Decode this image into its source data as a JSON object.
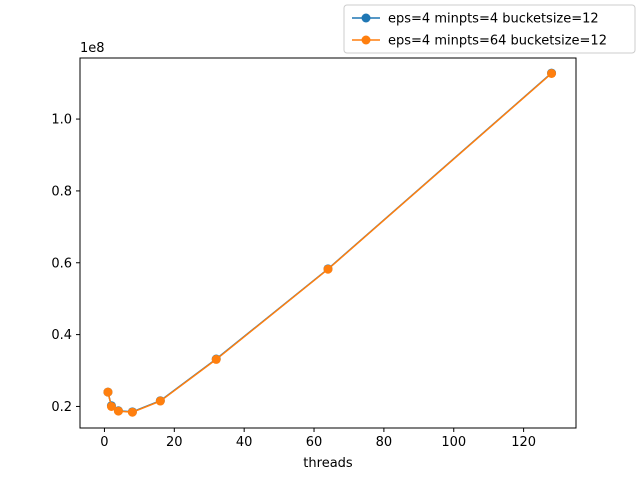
{
  "chart_data": {
    "type": "line",
    "xlabel": "threads",
    "ylabel": "",
    "y_offset_label": "1e8",
    "xlim": [
      -7,
      135
    ],
    "ylim": [
      14000000,
      117000000
    ],
    "x_ticks": [
      0,
      20,
      40,
      60,
      80,
      100,
      120
    ],
    "x_tick_labels": [
      "0",
      "20",
      "40",
      "60",
      "80",
      "100",
      "120"
    ],
    "y_ticks": [
      20000000,
      40000000,
      60000000,
      80000000,
      100000000
    ],
    "y_tick_labels": [
      "0.2",
      "0.4",
      "0.6",
      "0.8",
      "1.0"
    ],
    "legend_position": "above-right",
    "grid": false,
    "series": [
      {
        "name": "eps=4 minpts=4 bucketsize=12",
        "color": "#1f77b4",
        "x": [
          1,
          2,
          4,
          8,
          16,
          32,
          64,
          128
        ],
        "y": [
          24000000,
          20200000,
          18800000,
          18500000,
          21600000,
          33200000,
          58300000,
          112800000
        ]
      },
      {
        "name": "eps=4 minpts=64 bucketsize=12",
        "color": "#ff7f0e",
        "x": [
          1,
          2,
          4,
          8,
          16,
          32,
          64,
          128
        ],
        "y": [
          24000000,
          20000000,
          18700000,
          18400000,
          21500000,
          33100000,
          58200000,
          112700000
        ]
      }
    ]
  }
}
